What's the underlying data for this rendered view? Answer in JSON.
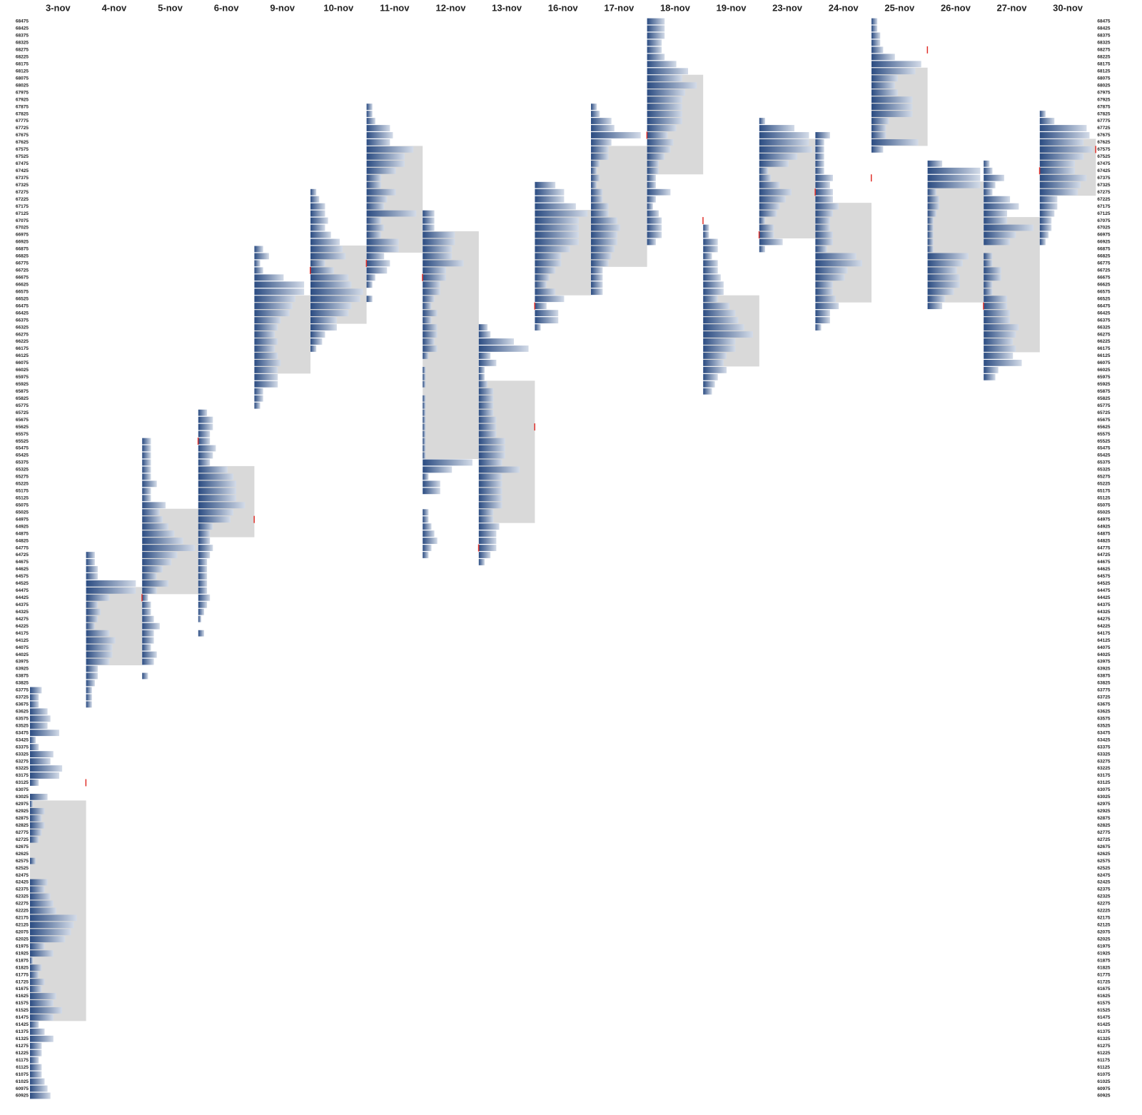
{
  "chart_data": {
    "type": "profile",
    "ylim": [
      60900,
      68500
    ],
    "yticks": [
      68475,
      68425,
      68375,
      68325,
      68275,
      68225,
      68175,
      68125,
      68075,
      68025,
      67975,
      67925,
      67875,
      67825,
      67775,
      67725,
      67675,
      67625,
      67575,
      67525,
      67475,
      67425,
      67375,
      67325,
      67275,
      67225,
      67175,
      67125,
      67075,
      67025,
      66975,
      66925,
      66875,
      66825,
      66775,
      66725,
      66675,
      66625,
      66575,
      66525,
      66475,
      66425,
      66375,
      66325,
      66275,
      66225,
      66175,
      66125,
      66075,
      66025,
      65975,
      65925,
      65875,
      65825,
      65775,
      65725,
      65675,
      65625,
      65575,
      65525,
      65475,
      65425,
      65375,
      65325,
      65275,
      65225,
      65175,
      65125,
      65075,
      65025,
      64975,
      64925,
      64875,
      64825,
      64775,
      64725,
      64675,
      64625,
      64575,
      64525,
      64475,
      64425,
      64375,
      64325,
      64275,
      64225,
      64175,
      64125,
      64075,
      64025,
      63975,
      63925,
      63875,
      63825,
      63775,
      63725,
      63675,
      63625,
      63575,
      63525,
      63475,
      63425,
      63375,
      63325,
      63275,
      63225,
      63175,
      63125,
      63075,
      63025,
      62975,
      62925,
      62875,
      62825,
      62775,
      62725,
      62675,
      62625,
      62575,
      62525,
      62475,
      62425,
      62375,
      62325,
      62275,
      62225,
      62175,
      62125,
      62075,
      62025,
      61975,
      61925,
      61875,
      61825,
      61775,
      61725,
      61675,
      61625,
      61575,
      61525,
      61475,
      61425,
      61375,
      61325,
      61275,
      61225,
      61175,
      61125,
      61075,
      61025,
      60975,
      60925
    ],
    "colors": {
      "bar_dark": "#2b4c82",
      "bar_light": "#d3dbe8",
      "value_area": "#d9d9d9",
      "marker": "#e0302a"
    },
    "days": [
      {
        "date": "3-nov",
        "high": 63775,
        "va": [
          61475,
          62975
        ],
        "close": 63125,
        "tpo": [
          4,
          3,
          3,
          6,
          7,
          6,
          10,
          2,
          3,
          8,
          7,
          11,
          10,
          3,
          0,
          6,
          1,
          5,
          4,
          5,
          4,
          3,
          0,
          0,
          2,
          0,
          0,
          6,
          5,
          7,
          8,
          9,
          16,
          15,
          14,
          12,
          5,
          8,
          1,
          4,
          3,
          5,
          4,
          9,
          8,
          11,
          8,
          3,
          5,
          8,
          4,
          4,
          3,
          4,
          4,
          5,
          6,
          7
        ]
      },
      {
        "date": "4-nov",
        "high": 64725,
        "va": [
          63975,
          64475
        ],
        "tpo": [
          3,
          3,
          4,
          4,
          17,
          17,
          8,
          4,
          5,
          4,
          3,
          8,
          10,
          9,
          9,
          8,
          4,
          4,
          3,
          2,
          2,
          2
        ]
      },
      {
        "date": "5-nov",
        "high": 65525,
        "va": [
          64475,
          65025
        ],
        "open": 64425,
        "tpo": [
          3,
          3,
          3,
          3,
          3,
          3,
          5,
          3,
          3,
          8,
          6,
          7,
          9,
          11,
          14,
          18,
          12,
          10,
          7,
          5,
          9,
          5,
          2,
          3,
          3,
          4,
          6,
          4,
          4,
          3,
          5,
          4,
          0,
          2
        ]
      },
      {
        "date": "6-nov",
        "high": 65725,
        "va": [
          64875,
          65325
        ],
        "open": 65525,
        "close": 64975,
        "tpo": [
          3,
          5,
          5,
          4,
          4,
          6,
          5,
          4,
          10,
          12,
          13,
          13,
          13,
          16,
          12,
          11,
          5,
          4,
          4,
          5,
          4,
          3,
          3,
          3,
          3,
          3,
          4,
          3,
          2,
          1,
          0,
          2
        ]
      },
      {
        "date": "9-nov",
        "high": 66875,
        "va": [
          66025,
          66525
        ],
        "tpo": [
          3,
          5,
          2,
          3,
          10,
          17,
          17,
          14,
          13,
          12,
          9,
          8,
          7,
          8,
          7,
          8,
          9,
          8,
          8,
          8,
          3,
          3,
          2
        ]
      },
      {
        "date": "10-nov",
        "high": 67275,
        "va": [
          66375,
          66875
        ],
        "open": 66725,
        "tpo": [
          2,
          3,
          5,
          5,
          6,
          5,
          7,
          10,
          11,
          12,
          5,
          8,
          13,
          14,
          18,
          17,
          14,
          13,
          9,
          9,
          5,
          4,
          2
        ]
      },
      {
        "date": "11-nov",
        "high": 67875,
        "va": [
          66875,
          67575
        ],
        "open": 66775,
        "tpo": [
          2,
          2,
          3,
          8,
          9,
          8,
          16,
          13,
          13,
          10,
          5,
          5,
          10,
          7,
          6,
          17,
          5,
          6,
          5,
          11,
          11,
          6,
          8,
          7,
          3,
          2,
          0,
          2
        ]
      },
      {
        "date": "12-nov",
        "high": 67125,
        "va": [
          65425,
          66975
        ],
        "open": 66675,
        "tpo": [
          4,
          4,
          4,
          11,
          11,
          10,
          10,
          14,
          8,
          8,
          6,
          6,
          4,
          3,
          5,
          3,
          5,
          5,
          4,
          5,
          2,
          0,
          1,
          1,
          1,
          0,
          1,
          1,
          1,
          1,
          1,
          1,
          1,
          1,
          1,
          17,
          10,
          2,
          6,
          6,
          0,
          0,
          2,
          2,
          3,
          4,
          5,
          3,
          2
        ]
      },
      {
        "date": "13-nov",
        "high": 66325,
        "va": [
          64975,
          65925
        ],
        "open": 64775,
        "close": 65625,
        "tpo": [
          3,
          4,
          12,
          17,
          4,
          6,
          2,
          2,
          3,
          5,
          5,
          5,
          5,
          6,
          6,
          6,
          9,
          9,
          9,
          8,
          14,
          8,
          8,
          8,
          8,
          8,
          5,
          5,
          7,
          6,
          6,
          6,
          4,
          2
        ]
      },
      {
        "date": "16-nov",
        "high": 67325,
        "va": [
          66575,
          67125
        ],
        "open": 66475,
        "tpo": [
          7,
          10,
          10,
          14,
          18,
          15,
          15,
          15,
          15,
          12,
          9,
          9,
          7,
          5,
          4,
          7,
          10,
          4,
          8,
          8,
          2
        ]
      },
      {
        "date": "17-nov",
        "high": 67875,
        "va": [
          66775,
          67575
        ],
        "tpo": [
          2,
          3,
          7,
          8,
          17,
          7,
          6,
          6,
          3,
          2,
          3,
          2,
          4,
          4,
          6,
          6,
          9,
          10,
          9,
          9,
          8,
          7,
          6,
          4,
          4,
          4,
          4
        ]
      },
      {
        "date": "18-nov",
        "high": 68475,
        "va": [
          67425,
          68075
        ],
        "open": 67675,
        "tpo": [
          6,
          6,
          6,
          5,
          5,
          6,
          10,
          14,
          12,
          17,
          13,
          12,
          12,
          12,
          12,
          10,
          7,
          9,
          8,
          6,
          4,
          4,
          3,
          3,
          8,
          3,
          2,
          4,
          5,
          5,
          5,
          3
        ]
      },
      {
        "date": "19-nov",
        "high": 67025,
        "va": [
          66075,
          66525
        ],
        "open": 67075,
        "tpo": [
          2,
          2,
          5,
          5,
          3,
          5,
          5,
          6,
          7,
          7,
          5,
          9,
          11,
          12,
          14,
          17,
          11,
          11,
          8,
          7,
          8,
          5,
          4,
          3
        ]
      },
      {
        "date": "23-nov",
        "high": 67775,
        "va": [
          66975,
          67625
        ],
        "open": 66975,
        "tpo": [
          2,
          12,
          17,
          17,
          18,
          13,
          10,
          3,
          4,
          7,
          11,
          9,
          7,
          6,
          2,
          5,
          5,
          8,
          2
        ]
      },
      {
        "date": "24-nov",
        "high": 67675,
        "va": [
          66525,
          67175
        ],
        "open": 67275,
        "tpo": [
          5,
          3,
          3,
          3,
          3,
          3,
          6,
          5,
          6,
          6,
          8,
          6,
          5,
          5,
          6,
          6,
          4,
          14,
          16,
          11,
          10,
          6,
          6,
          7,
          8,
          5,
          5,
          2
        ]
      },
      {
        "date": "25-nov",
        "high": 68475,
        "va": [
          67625,
          68125
        ],
        "open": 67375,
        "close": 68275,
        "tpo": [
          2,
          2,
          3,
          3,
          4,
          8,
          17,
          15,
          9,
          8,
          9,
          14,
          14,
          14,
          6,
          5,
          5,
          16,
          4
        ]
      },
      {
        "date": "26-nov",
        "high": 67475,
        "va": [
          66525,
          67325
        ],
        "tpo": [
          5,
          18,
          18,
          18,
          3,
          4,
          4,
          3,
          2,
          2,
          2,
          2,
          2,
          14,
          12,
          10,
          11,
          11,
          9,
          6,
          5
        ]
      },
      {
        "date": "27-nov",
        "high": 67475,
        "va": [
          66175,
          67075
        ],
        "open": 66475,
        "tpo": [
          2,
          3,
          7,
          4,
          3,
          9,
          12,
          8,
          8,
          17,
          11,
          9,
          0,
          3,
          3,
          6,
          6,
          3,
          3,
          8,
          8,
          9,
          9,
          12,
          11,
          10,
          11,
          10,
          13,
          5,
          4
        ]
      },
      {
        "date": "30-nov",
        "high": 67825,
        "va": [
          67275,
          67625
        ],
        "open": 67425,
        "close": 67575,
        "tpo": [
          2,
          5,
          16,
          17,
          15,
          18,
          15,
          12,
          12,
          16,
          14,
          13,
          6,
          6,
          5,
          4,
          4,
          3,
          2
        ]
      }
    ]
  }
}
